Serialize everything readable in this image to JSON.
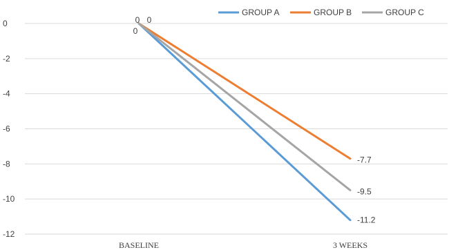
{
  "chart_data": {
    "type": "line",
    "categories": [
      "BASELINE",
      "3 WEEKS"
    ],
    "series": [
      {
        "name": "GROUP A",
        "color": "#5b9bd5",
        "values": [
          0,
          -11.2
        ],
        "labels": [
          "0",
          "-11.2"
        ]
      },
      {
        "name": "GROUP B",
        "color": "#ed7d31",
        "values": [
          0,
          -7.7
        ],
        "labels": [
          "0",
          "-7.7"
        ]
      },
      {
        "name": "GROUP C",
        "color": "#a5a5a5",
        "values": [
          0,
          -9.5
        ],
        "labels": [
          "0",
          "-9.5"
        ]
      }
    ],
    "y_ticks": [
      "0",
      "-2",
      "-4",
      "-6",
      "-8",
      "-10",
      "-12"
    ],
    "ylim": [
      -12,
      0
    ],
    "grid": true,
    "legend_position": "top-right",
    "title": "",
    "xlabel": "",
    "ylabel": ""
  }
}
